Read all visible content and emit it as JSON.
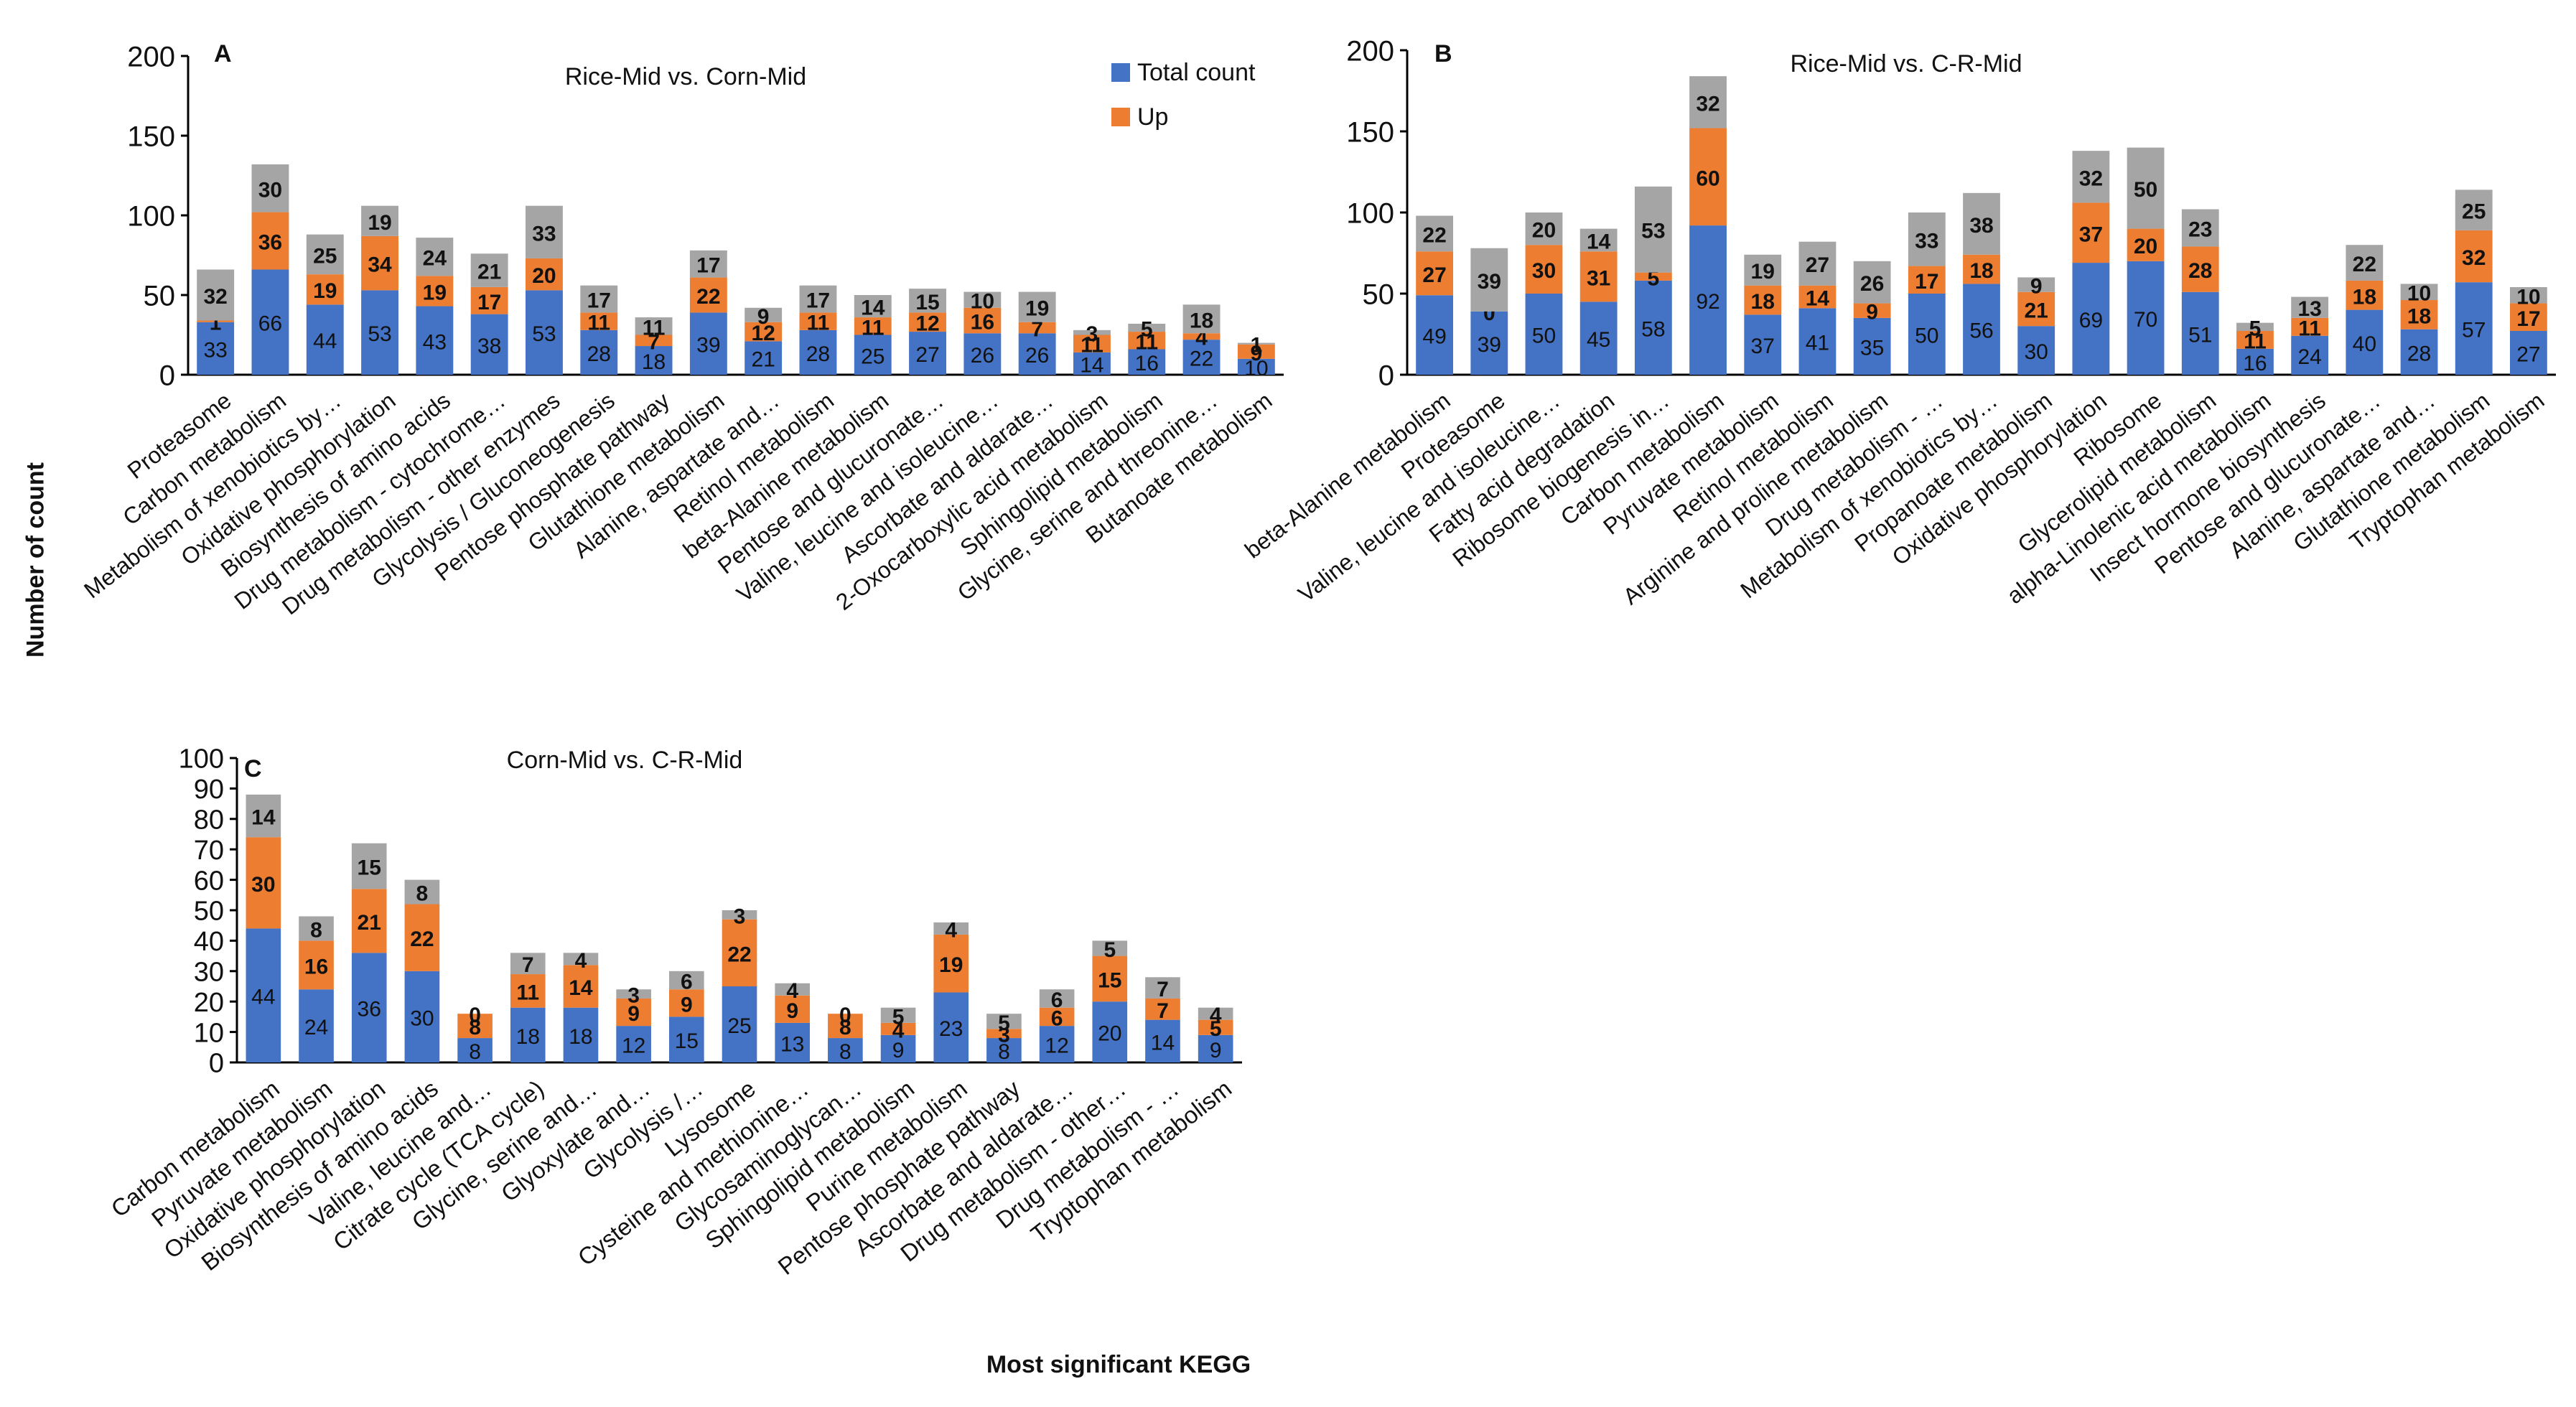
{
  "colors": {
    "total": "#4472C4",
    "up": "#ED7D31",
    "down": "#A5A5A5",
    "axis": "#000000"
  },
  "legend": {
    "total": "Total count",
    "up": "Up"
  },
  "axis_labels": {
    "y": "Number of count",
    "x": "Most significant KEGG"
  },
  "chart_data": [
    {
      "type": "bar",
      "stacked": true,
      "panel": "A",
      "title": "Rice-Mid vs. Corn-Mid",
      "ylim": [
        0,
        200
      ],
      "yticks": [
        0,
        50,
        100,
        150,
        200
      ],
      "categories": [
        "Proteasome",
        "Carbon metabolism",
        "Metabolism of xenobiotics by…",
        "Oxidative phosphorylation",
        "Biosynthesis of amino acids",
        "Drug metabolism - cytochrome…",
        "Drug metabolism - other enzymes",
        "Glycolysis / Gluconeogenesis",
        "Pentose phosphate pathway",
        "Glutathione metabolism",
        "Alanine, aspartate and…",
        "Retinol metabolism",
        "beta-Alanine metabolism",
        "Pentose and glucuronate…",
        "Valine, leucine and isoleucine…",
        "Ascorbate and aldarate…",
        "2-Oxocarboxylic acid metabolism",
        "Sphingolipid metabolism",
        "Glycine, serine and threonine…",
        "Butanoate metabolism"
      ],
      "series": [
        {
          "name": "Total count",
          "values": [
            33,
            66,
            44,
            53,
            43,
            38,
            53,
            28,
            18,
            39,
            21,
            28,
            25,
            27,
            26,
            26,
            14,
            16,
            22,
            10
          ]
        },
        {
          "name": "Up",
          "values": [
            1,
            36,
            19,
            34,
            19,
            17,
            20,
            11,
            7,
            22,
            12,
            11,
            11,
            12,
            16,
            7,
            11,
            11,
            4,
            9
          ]
        },
        {
          "values": [
            32,
            30,
            25,
            19,
            24,
            21,
            33,
            17,
            11,
            17,
            9,
            17,
            14,
            15,
            10,
            19,
            3,
            5,
            18,
            1
          ]
        }
      ]
    },
    {
      "type": "bar",
      "stacked": true,
      "panel": "B",
      "title": "Rice-Mid vs. C-R-Mid",
      "ylim": [
        0,
        200
      ],
      "yticks": [
        0,
        50,
        100,
        150,
        200
      ],
      "categories": [
        "beta-Alanine metabolism",
        "Proteasome",
        "Valine, leucine and isoleucine…",
        "Fatty acid degradation",
        "Ribosome biogenesis in…",
        "Carbon metabolism",
        "Pyruvate metabolism",
        "Retinol metabolism",
        "Arginine and proline metabolism",
        "Drug metabolism - …",
        "Metabolism of xenobiotics by…",
        "Propanoate metabolism",
        "Oxidative phosphorylation",
        "Ribosome",
        "Glycerolipid metabolism",
        "alpha-Linolenic acid metabolism",
        "Insect hormone biosynthesis",
        "Pentose and glucuronate…",
        "Alanine, aspartate and…",
        "Glutathione metabolism",
        "Tryptophan metabolism"
      ],
      "series": [
        {
          "name": "Total count",
          "values": [
            49,
            39,
            50,
            45,
            58,
            92,
            37,
            41,
            35,
            50,
            56,
            30,
            69,
            70,
            51,
            16,
            24,
            40,
            28,
            57,
            27
          ]
        },
        {
          "name": "Up",
          "values": [
            27,
            0,
            30,
            31,
            5,
            60,
            18,
            14,
            9,
            17,
            18,
            21,
            37,
            20,
            28,
            11,
            11,
            18,
            18,
            32,
            17
          ]
        },
        {
          "values": [
            22,
            39,
            20,
            14,
            53,
            32,
            19,
            27,
            26,
            33,
            38,
            9,
            32,
            50,
            23,
            5,
            13,
            22,
            10,
            25,
            10
          ]
        }
      ]
    },
    {
      "type": "bar",
      "stacked": true,
      "panel": "C",
      "title": "Corn-Mid vs. C-R-Mid",
      "ylim": [
        0,
        100
      ],
      "yticks": [
        0,
        10,
        20,
        30,
        40,
        50,
        60,
        70,
        80,
        90,
        100
      ],
      "categories": [
        "Carbon metabolism",
        "Pyruvate metabolism",
        "Oxidative phosphorylation",
        "Biosynthesis of amino acids",
        "Valine, leucine and…",
        "Citrate cycle (TCA cycle)",
        "Glycine, serine and…",
        "Glyoxylate and…",
        "Glycolysis /…",
        "Lysosome",
        "Cysteine and methionine…",
        "Glycosaminoglycan…",
        "Sphingolipid metabolism",
        "Purine metabolism",
        "Pentose phosphate pathway",
        "Ascorbate and aldarate…",
        "Drug metabolism - other…",
        "Drug metabolism - …",
        "Tryptophan metabolism"
      ],
      "series": [
        {
          "name": "Total count",
          "values": [
            44,
            24,
            36,
            30,
            8,
            18,
            18,
            12,
            15,
            25,
            13,
            8,
            9,
            23,
            8,
            12,
            20,
            14,
            9
          ]
        },
        {
          "name": "Up",
          "values": [
            30,
            16,
            21,
            22,
            8,
            11,
            14,
            9,
            9,
            22,
            9,
            8,
            4,
            19,
            3,
            6,
            15,
            7,
            5
          ]
        },
        {
          "values": [
            14,
            8,
            15,
            8,
            0,
            7,
            4,
            3,
            6,
            3,
            4,
            0,
            5,
            4,
            5,
            6,
            5,
            7,
            4
          ]
        }
      ]
    }
  ]
}
